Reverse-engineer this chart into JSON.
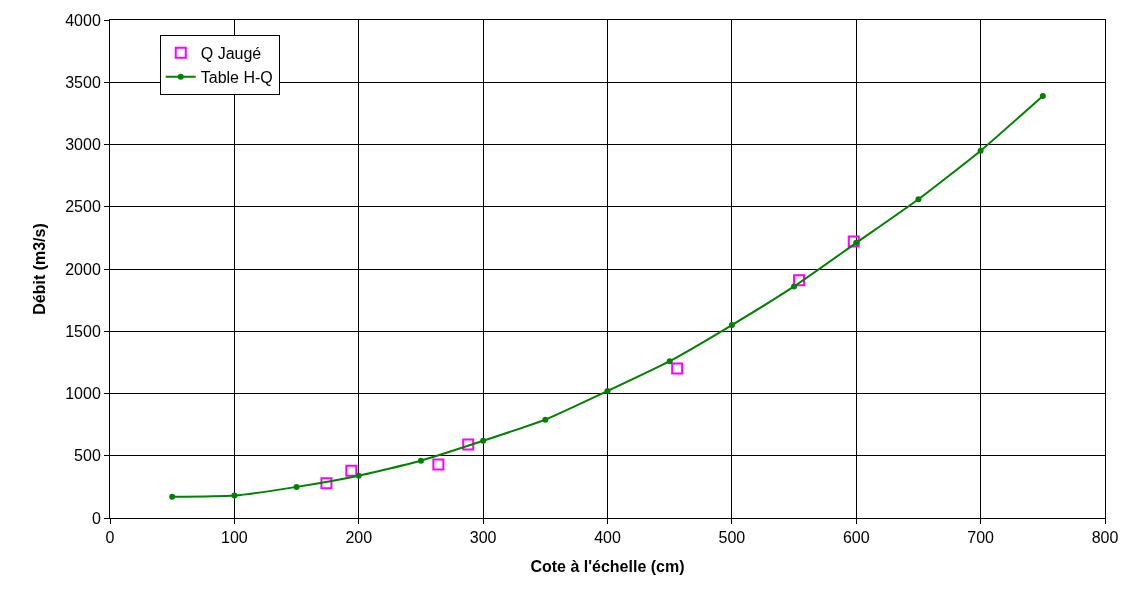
{
  "chart_data": {
    "type": "scatter",
    "xlabel": "Cote à l'échelle (cm)",
    "ylabel": "Débit (m3/s)",
    "xlim": [
      0,
      800
    ],
    "xticks": [
      0,
      100,
      200,
      300,
      400,
      500,
      600,
      700,
      800
    ],
    "ylim": [
      0,
      4000
    ],
    "yticks": [
      0,
      500,
      1000,
      1500,
      2000,
      2500,
      3000,
      3500,
      4000
    ],
    "grid": true,
    "legend": "top left",
    "series": [
      {
        "name": "Q Jaugé",
        "marker": "square",
        "color": "#ff00ff",
        "x": [
          174,
          194,
          264,
          288,
          456,
          554,
          598
        ],
        "values": [
          280,
          380,
          430,
          590,
          1200,
          1910,
          2220
        ]
      },
      {
        "name": "Table H-Q",
        "type": "line",
        "marker": "circle",
        "line_style": "solid",
        "color": "#008000",
        "x": [
          50,
          100,
          150,
          200,
          250,
          300,
          350,
          400,
          450,
          500,
          550,
          600,
          650,
          700,
          750
        ],
        "values": [
          170,
          180,
          250,
          340,
          460,
          620,
          790,
          1020,
          1260,
          1550,
          1860,
          2210,
          2560,
          2950,
          3390
        ]
      }
    ]
  }
}
